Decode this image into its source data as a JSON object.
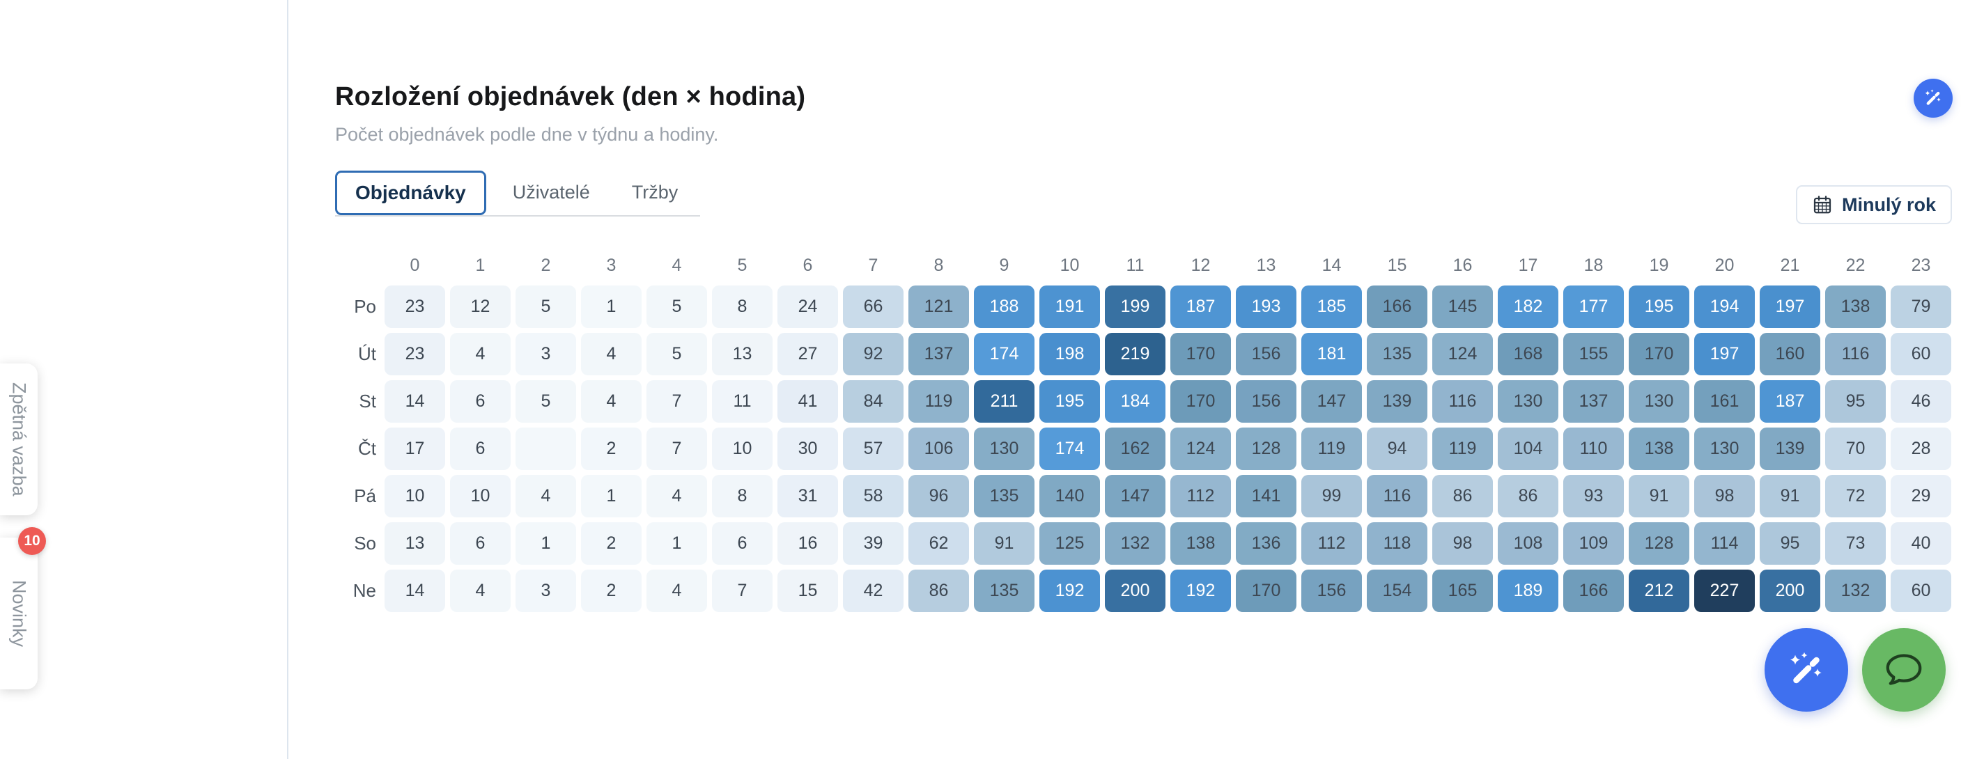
{
  "header": {
    "title": "Rozložení objednávek (den × hodina)",
    "subtitle": "Počet objednávek podle dne v týdnu a hodiny."
  },
  "tabs": {
    "orders": "Objednávky",
    "users": "Uživatelé",
    "revenue": "Tržby",
    "active": "Objednávky"
  },
  "period_button": {
    "label": "Minulý rok",
    "icon": "calendar-icon"
  },
  "side_panel": {
    "feedback_label": "Zpětná vazba",
    "news_label": "Novinky",
    "news_badge_count": "10"
  },
  "fabs": {
    "top_right_icon": "magic-wand-icon",
    "bottom_magic_icon": "magic-wand-icon",
    "bottom_chat_icon": "chat-bubble-icon"
  },
  "colors": {
    "accent_blue": "#3f70ef",
    "fab_green": "#68b964",
    "badge_red": "#ee5a55",
    "active_tab_border": "#2f6cb3",
    "divider": "#dde5ee"
  },
  "chart_data": {
    "type": "heatmap",
    "title": "Rozložení objednávek (den × hodina)",
    "subtitle": "Počet objednávek podle dne v týdnu a hodiny.",
    "columns": [
      "0",
      "1",
      "2",
      "3",
      "4",
      "5",
      "6",
      "7",
      "8",
      "9",
      "10",
      "11",
      "12",
      "13",
      "14",
      "15",
      "16",
      "17",
      "18",
      "19",
      "20",
      "21",
      "22",
      "23"
    ],
    "rows": [
      "Po",
      "Út",
      "St",
      "Čt",
      "Pá",
      "So",
      "Ne"
    ],
    "values": [
      [
        23,
        12,
        5,
        1,
        5,
        8,
        24,
        66,
        121,
        188,
        191,
        199,
        187,
        193,
        185,
        166,
        145,
        182,
        177,
        195,
        194,
        197,
        138,
        79
      ],
      [
        23,
        4,
        3,
        4,
        5,
        13,
        27,
        92,
        137,
        174,
        198,
        219,
        170,
        156,
        181,
        135,
        124,
        168,
        155,
        170,
        197,
        160,
        116,
        60
      ],
      [
        14,
        6,
        5,
        4,
        7,
        11,
        41,
        84,
        119,
        211,
        195,
        184,
        170,
        156,
        147,
        139,
        116,
        130,
        137,
        130,
        161,
        187,
        95,
        46
      ],
      [
        17,
        6,
        null,
        2,
        7,
        10,
        30,
        57,
        106,
        130,
        174,
        162,
        124,
        128,
        119,
        94,
        119,
        104,
        110,
        138,
        130,
        139,
        70,
        28
      ],
      [
        10,
        10,
        4,
        1,
        4,
        8,
        31,
        58,
        96,
        135,
        140,
        147,
        112,
        141,
        99,
        116,
        86,
        86,
        93,
        91,
        98,
        91,
        72,
        29
      ],
      [
        13,
        6,
        1,
        2,
        1,
        6,
        16,
        39,
        62,
        91,
        125,
        132,
        138,
        136,
        112,
        118,
        98,
        108,
        109,
        128,
        114,
        95,
        73,
        40
      ],
      [
        14,
        4,
        3,
        2,
        4,
        7,
        15,
        42,
        86,
        135,
        192,
        200,
        192,
        170,
        156,
        154,
        165,
        189,
        166,
        212,
        227,
        200,
        132,
        60
      ]
    ],
    "value_min": 0,
    "value_max": 227,
    "color_stops": [
      [
        0,
        "#f3f8fb"
      ],
      [
        15,
        "#eff4f9"
      ],
      [
        30,
        "#e9f0f8"
      ],
      [
        45,
        "#e3ecf5"
      ],
      [
        60,
        "#d0e0ee"
      ],
      [
        70,
        "#c4d7e7"
      ],
      [
        85,
        "#b7cee0"
      ],
      [
        100,
        "#a8c3d8"
      ],
      [
        110,
        "#98b8d1"
      ],
      [
        125,
        "#89afc9"
      ],
      [
        140,
        "#80a9c4"
      ],
      [
        155,
        "#78a3c0"
      ],
      [
        172,
        "#6c9ab8"
      ],
      [
        173,
        "#569cd9"
      ],
      [
        198,
        "#498fce"
      ],
      [
        199,
        "#3871a2"
      ],
      [
        212,
        "#32699a"
      ],
      [
        219,
        "#2d628f"
      ],
      [
        227,
        "#203e5d"
      ]
    ],
    "text_light_threshold": 173
  }
}
